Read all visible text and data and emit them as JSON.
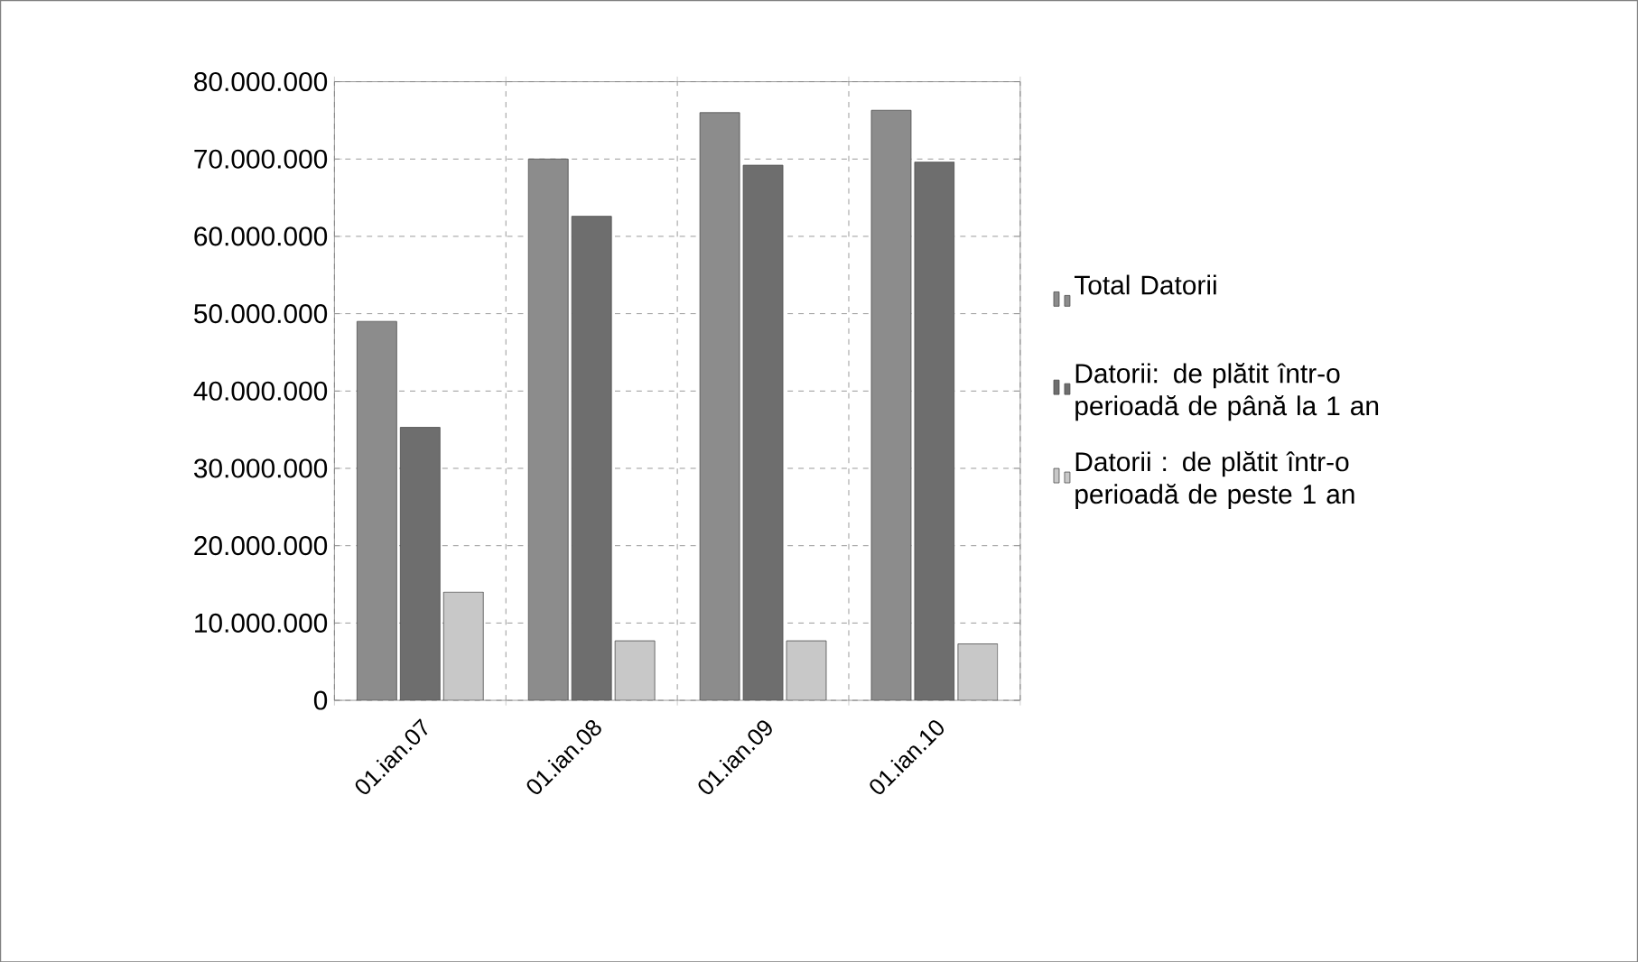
{
  "chart_data": {
    "type": "bar",
    "categories": [
      "01.ian.07",
      "01.ian.08",
      "01.ian.09",
      "01.ian.10"
    ],
    "series": [
      {
        "name": "Total Datorii",
        "color": "#8c8c8c",
        "values": [
          49000000,
          70000000,
          76000000,
          76300000
        ]
      },
      {
        "name": "Datorii: de plătit într-o perioadă de până la 1 an",
        "color": "#6e6e6e",
        "values": [
          35300000,
          62600000,
          69200000,
          69600000
        ]
      },
      {
        "name": "Datorii : de plătit într-o perioadă de peste 1 an",
        "color": "#c8c8c8",
        "values": [
          14000000,
          7700000,
          7700000,
          7300000
        ]
      }
    ],
    "ylim": [
      0,
      80000000
    ],
    "yticks": [
      {
        "value": 0,
        "label": "0"
      },
      {
        "value": 10000000,
        "label": "10.000.000"
      },
      {
        "value": 20000000,
        "label": "20.000.000"
      },
      {
        "value": 30000000,
        "label": "30.000.000"
      },
      {
        "value": 40000000,
        "label": "40.000.000"
      },
      {
        "value": 50000000,
        "label": "50.000.000"
      },
      {
        "value": 60000000,
        "label": "60.000.000"
      },
      {
        "value": 70000000,
        "label": "70.000.000"
      },
      {
        "value": 80000000,
        "label": "80.000.000"
      }
    ],
    "grid": true,
    "legend": "right"
  }
}
